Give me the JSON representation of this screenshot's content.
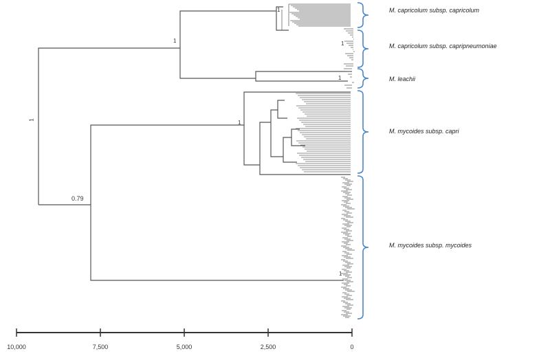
{
  "tree": {
    "support_values": {
      "root": "1",
      "capricolum_leachii": "1",
      "mycoides_group": "0.79",
      "capri": "1",
      "capricolum": "1",
      "capripneumoniae": "1",
      "leachii": "1",
      "mycoides_mycoides": "1"
    },
    "line_color": "#555555"
  },
  "clades": [
    {
      "label": "M. capricolum subsp. capricolum"
    },
    {
      "label": "M. capricolum subsp. capripneumoniae"
    },
    {
      "label": "M. leachii"
    },
    {
      "label": "M. mycoides subsp. capri"
    },
    {
      "label": "M. mycoides subsp. mycoides"
    }
  ],
  "bracket_color": "#4a86c8",
  "scale_axis": {
    "ticks": [
      "10,000",
      "7,500",
      "5,000",
      "2,500",
      "0"
    ]
  }
}
